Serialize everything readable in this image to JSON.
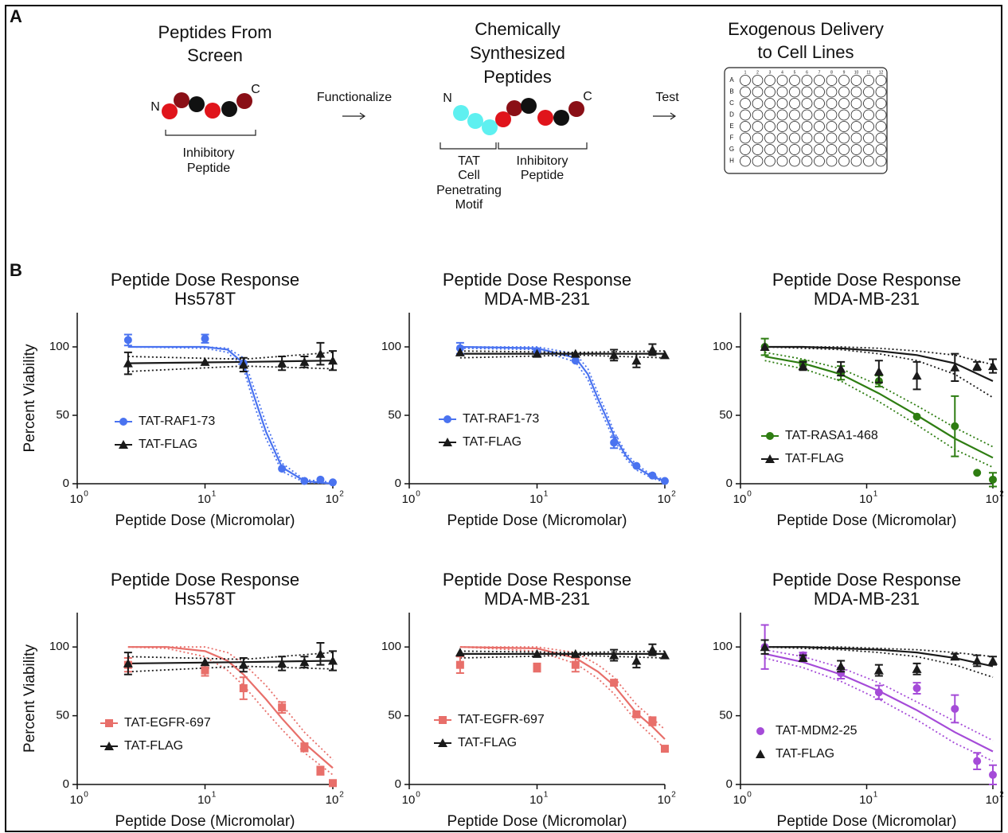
{
  "panel_a": {
    "label": "A",
    "step1": {
      "title": [
        "Peptides From",
        "Screen"
      ],
      "n": "N",
      "c": "C",
      "bracket": [
        "Inhibitory",
        "Peptide"
      ]
    },
    "arrow1": "Functionalize",
    "step2": {
      "title": [
        "Chemically",
        "Synthesized",
        "Peptides"
      ],
      "n": "N",
      "c": "C",
      "tat": [
        "TAT",
        "Cell",
        "Penetrating",
        "Motif"
      ],
      "inhibitory": [
        "Inhibitory",
        "Peptide"
      ]
    },
    "arrow2": "Test",
    "step3": {
      "title": [
        "Exogenous Delivery",
        "to Cell Lines"
      ],
      "rows": [
        "A",
        "B",
        "C",
        "D",
        "E",
        "F",
        "G",
        "H"
      ],
      "columns": [
        "1",
        "2",
        "3",
        "4",
        "5",
        "6",
        "7",
        "8",
        "9",
        "10",
        "11",
        "12"
      ]
    }
  },
  "panel_b": {
    "label": "B"
  },
  "chart_data": [
    {
      "type": "scatter",
      "title": "Peptide Dose Response",
      "subtitle": "Hs578T",
      "xlabel": "Peptide Dose (Micromolar)",
      "ylabel": "Percent Viability",
      "xscale": "log",
      "xlim": [
        1,
        100
      ],
      "xticks": [
        {
          "value": 1,
          "label": "10",
          "exponent": "0"
        },
        {
          "value": 10,
          "label": "10",
          "exponent": "1"
        },
        {
          "value": 100,
          "label": "10",
          "exponent": "2"
        }
      ],
      "ylim": [
        0,
        125
      ],
      "yticks": [
        0,
        50,
        100
      ],
      "legend_line": true,
      "series": [
        {
          "name": "TAT-RAF1-73",
          "color": "#4a73f0",
          "marker": "circle",
          "x": [
            2.5,
            10,
            20,
            40,
            60,
            80,
            100
          ],
          "values": [
            105,
            106,
            88,
            11,
            2,
            3,
            1
          ],
          "errors": [
            4,
            3,
            null,
            null,
            null,
            null,
            null
          ],
          "fit": {
            "x": [
              2.5,
              10,
              15,
              20,
              25,
              30,
              40,
              60,
              100
            ],
            "values": [
              100,
              100,
              98,
              88,
              60,
              38,
              12,
              2,
              0
            ],
            "lower": [
              100,
              99,
              96,
              84,
              54,
              33,
              9,
              1,
              0
            ],
            "upper": [
              100,
              100,
              99,
              92,
              66,
              44,
              15,
              3,
              1
            ]
          }
        },
        {
          "name": "TAT-FLAG",
          "color": "#1a1a1a",
          "marker": "triangle",
          "x": [
            2.5,
            10,
            20,
            40,
            60,
            80,
            100
          ],
          "values": [
            88,
            89,
            87,
            88,
            89,
            95,
            90
          ],
          "errors": [
            8,
            null,
            5,
            5,
            4,
            8,
            7
          ],
          "fit": {
            "x": [
              2.5,
              20,
              100
            ],
            "values": [
              88,
              89,
              90
            ],
            "lower": [
              82,
              86,
              84
            ],
            "upper": [
              93,
              91,
              96
            ]
          }
        }
      ]
    },
    {
      "type": "scatter",
      "title": "Peptide Dose Response",
      "subtitle": "MDA-MB-231",
      "xlabel": "Peptide Dose (Micromolar)",
      "xscale": "log",
      "xlim": [
        1,
        100
      ],
      "xticks": [
        {
          "value": 1,
          "label": "10",
          "exponent": "0"
        },
        {
          "value": 10,
          "label": "10",
          "exponent": "1"
        },
        {
          "value": 100,
          "label": "10",
          "exponent": "2"
        }
      ],
      "ylim": [
        0,
        125
      ],
      "yticks": [
        0,
        50,
        100
      ],
      "legend_line": true,
      "series": [
        {
          "name": "TAT-RAF1-73",
          "color": "#4a73f0",
          "marker": "circle",
          "x": [
            2.5,
            10,
            20,
            40,
            60,
            80,
            100
          ],
          "values": [
            99,
            97,
            90,
            30,
            13,
            6,
            2
          ],
          "errors": [
            4,
            null,
            null,
            4,
            null,
            null,
            null
          ],
          "fit": {
            "x": [
              2.5,
              10,
              20,
              25,
              30,
              35,
              40,
              50,
              60,
              80,
              100
            ],
            "values": [
              100,
              99,
              92,
              80,
              62,
              48,
              35,
              20,
              12,
              5,
              2
            ],
            "lower": [
              99,
              98,
              89,
              76,
              58,
              44,
              32,
              18,
              10,
              4,
              1
            ],
            "upper": [
              100,
              100,
              95,
              84,
              66,
              52,
              38,
              22,
              14,
              6,
              3
            ]
          }
        },
        {
          "name": "TAT-FLAG",
          "color": "#1a1a1a",
          "marker": "triangle",
          "x": [
            2.5,
            10,
            20,
            40,
            60,
            80,
            100
          ],
          "values": [
            96,
            95,
            95,
            94,
            90,
            98,
            94
          ],
          "errors": [
            null,
            null,
            null,
            4,
            5,
            4,
            null
          ],
          "fit": {
            "x": [
              2.5,
              20,
              100
            ],
            "values": [
              95,
              95,
              95
            ],
            "lower": [
              92,
              94,
              92
            ],
            "upper": [
              97,
              96,
              97
            ]
          }
        }
      ]
    },
    {
      "type": "scatter",
      "title": "Peptide Dose Response",
      "subtitle": "MDA-MB-231",
      "xlabel": "Peptide Dose (Micromolar)",
      "xscale": "log",
      "xlim": [
        1,
        100
      ],
      "xticks": [
        {
          "value": 1,
          "label": "10",
          "exponent": "0"
        },
        {
          "value": 10,
          "label": "10",
          "exponent": "1"
        },
        {
          "value": 100,
          "label": "10",
          "exponent": "2"
        }
      ],
      "ylim": [
        0,
        125
      ],
      "yticks": [
        0,
        50,
        100
      ],
      "legend_line": true,
      "series": [
        {
          "name": "TAT-RASA1-468",
          "color": "#2e7d12",
          "marker": "circle",
          "x": [
            1.56,
            3.13,
            6.25,
            12.5,
            25,
            50,
            75,
            100
          ],
          "values": [
            100,
            87,
            81,
            75,
            49,
            42,
            8,
            3
          ],
          "errors": [
            6,
            3,
            5,
            4,
            null,
            22,
            null,
            5
          ],
          "fit": {
            "x": [
              1.56,
              3.13,
              6.25,
              12.5,
              25,
              50,
              100
            ],
            "values": [
              93,
              88,
              80,
              66,
              50,
              33,
              19
            ],
            "lower": [
              90,
              84,
              75,
              60,
              43,
              25,
              12
            ],
            "upper": [
              96,
              91,
              84,
              72,
              57,
              41,
              27
            ]
          }
        },
        {
          "name": "TAT-FLAG",
          "color": "#1a1a1a",
          "marker": "triangle",
          "x": [
            1.56,
            3.13,
            6.25,
            12.5,
            25,
            50,
            75,
            100
          ],
          "values": [
            100,
            86,
            84,
            82,
            79,
            85,
            86,
            86
          ],
          "errors": [
            null,
            3,
            5,
            8,
            10,
            10,
            3,
            5
          ],
          "fit": {
            "x": [
              1.56,
              3.13,
              6.25,
              12.5,
              25,
              50,
              100
            ],
            "values": [
              100,
              100,
              99,
              97,
              94,
              88,
              75
            ],
            "lower": [
              100,
              99,
              98,
              95,
              90,
              80,
              63
            ],
            "upper": [
              100,
              100,
              100,
              99,
              97,
              94,
              87
            ]
          }
        }
      ]
    },
    {
      "type": "scatter",
      "title": "Peptide Dose Response",
      "subtitle": "Hs578T",
      "xlabel": "Peptide Dose (Micromolar)",
      "ylabel": "Percent Viability",
      "xscale": "log",
      "xlim": [
        1,
        100
      ],
      "xticks": [
        {
          "value": 1,
          "label": "10",
          "exponent": "0"
        },
        {
          "value": 10,
          "label": "10",
          "exponent": "1"
        },
        {
          "value": 100,
          "label": "10",
          "exponent": "2"
        }
      ],
      "ylim": [
        0,
        125
      ],
      "yticks": [
        0,
        50,
        100
      ],
      "legend_line": true,
      "series": [
        {
          "name": "TAT-EGFR-697",
          "color": "#e86f6a",
          "marker": "square",
          "x": [
            2.5,
            10,
            20,
            40,
            60,
            80,
            100
          ],
          "values": [
            87,
            83,
            70,
            56,
            27,
            10,
            1
          ],
          "errors": [
            5,
            4,
            8,
            4,
            3,
            3,
            null
          ],
          "fit": {
            "x": [
              2.5,
              5,
              10,
              15,
              20,
              30,
              40,
              60,
              100
            ],
            "values": [
              100,
              100,
              97,
              90,
              80,
              62,
              48,
              30,
              12
            ],
            "lower": [
              100,
              99,
              93,
              83,
              72,
              53,
              40,
              23,
              7
            ],
            "upper": [
              100,
              100,
              100,
              96,
              88,
              72,
              58,
              38,
              18
            ]
          }
        },
        {
          "name": "TAT-FLAG",
          "color": "#1a1a1a",
          "marker": "triangle",
          "x": [
            2.5,
            10,
            20,
            40,
            60,
            80,
            100
          ],
          "values": [
            88,
            89,
            87,
            88,
            89,
            95,
            90
          ],
          "errors": [
            8,
            null,
            5,
            5,
            4,
            8,
            7
          ],
          "fit": {
            "x": [
              2.5,
              20,
              100
            ],
            "values": [
              88,
              89,
              90
            ],
            "lower": [
              82,
              86,
              84
            ],
            "upper": [
              93,
              91,
              96
            ]
          }
        }
      ]
    },
    {
      "type": "scatter",
      "title": "Peptide Dose Response",
      "subtitle": "MDA-MB-231",
      "xlabel": "Peptide Dose (Micromolar)",
      "xscale": "log",
      "xlim": [
        1,
        100
      ],
      "xticks": [
        {
          "value": 1,
          "label": "10",
          "exponent": "0"
        },
        {
          "value": 10,
          "label": "10",
          "exponent": "1"
        },
        {
          "value": 100,
          "label": "10",
          "exponent": "2"
        }
      ],
      "ylim": [
        0,
        125
      ],
      "yticks": [
        0,
        50,
        100
      ],
      "legend_line": true,
      "series": [
        {
          "name": "TAT-EGFR-697",
          "color": "#e86f6a",
          "marker": "square",
          "x": [
            2.5,
            10,
            20,
            40,
            60,
            80,
            100
          ],
          "values": [
            87,
            85,
            87,
            74,
            51,
            46,
            26
          ],
          "errors": [
            6,
            3,
            5,
            null,
            2,
            3,
            null
          ],
          "fit": {
            "x": [
              2.5,
              10,
              20,
              30,
              40,
              60,
              80,
              100
            ],
            "values": [
              100,
              99,
              92,
              82,
              72,
              52,
              42,
              33
            ],
            "lower": [
              100,
              97,
              88,
              77,
              66,
              46,
              35,
              26
            ],
            "upper": [
              100,
              100,
              96,
              87,
              78,
              58,
              48,
              40
            ]
          }
        },
        {
          "name": "TAT-FLAG",
          "color": "#1a1a1a",
          "marker": "triangle",
          "x": [
            2.5,
            10,
            20,
            40,
            60,
            80,
            100
          ],
          "values": [
            96,
            95,
            95,
            94,
            90,
            98,
            94
          ],
          "errors": [
            null,
            null,
            null,
            4,
            5,
            4,
            null
          ],
          "fit": {
            "x": [
              2.5,
              20,
              100
            ],
            "values": [
              95,
              95,
              95
            ],
            "lower": [
              92,
              94,
              92
            ],
            "upper": [
              97,
              96,
              97
            ]
          }
        }
      ]
    },
    {
      "type": "scatter",
      "title": "Peptide Dose Response",
      "subtitle": "MDA-MB-231",
      "xlabel": "Peptide Dose (Micromolar)",
      "xscale": "log",
      "xlim": [
        1,
        100
      ],
      "xticks": [
        {
          "value": 1,
          "label": "10",
          "exponent": "0"
        },
        {
          "value": 10,
          "label": "10",
          "exponent": "1"
        },
        {
          "value": 100,
          "label": "10",
          "exponent": "2"
        }
      ],
      "ylim": [
        0,
        125
      ],
      "yticks": [
        0,
        50,
        100
      ],
      "legend_line": false,
      "series": [
        {
          "name": "TAT-MDM2-25",
          "color": "#a54bd8",
          "marker": "circle",
          "x": [
            1.56,
            3.13,
            6.25,
            12.5,
            25,
            50,
            75,
            100
          ],
          "values": [
            100,
            94,
            81,
            67,
            70,
            55,
            17,
            7
          ],
          "errors": [
            16,
            2,
            4,
            5,
            4,
            10,
            6,
            7
          ],
          "fit": {
            "x": [
              1.56,
              3.13,
              6.25,
              12.5,
              25,
              50,
              100
            ],
            "values": [
              95,
              89,
              80,
              68,
              54,
              38,
              24
            ],
            "lower": [
              92,
              85,
              75,
              62,
              47,
              30,
              17
            ],
            "upper": [
              98,
              93,
              85,
              74,
              60,
              46,
              32
            ]
          }
        },
        {
          "name": "TAT-FLAG",
          "color": "#1a1a1a",
          "marker": "triangle",
          "x": [
            1.56,
            3.13,
            6.25,
            12.5,
            25,
            50,
            75,
            100
          ],
          "values": [
            100,
            92,
            86,
            83,
            84,
            93,
            90,
            90
          ],
          "errors": [
            5,
            2,
            4,
            4,
            4,
            2,
            4,
            3
          ],
          "fit": {
            "x": [
              1.56,
              3.13,
              6.25,
              12.5,
              25,
              50,
              100
            ],
            "values": [
              100,
              100,
              99,
              98,
              96,
              92,
              86
            ],
            "lower": [
              100,
              99,
              98,
              96,
              93,
              87,
              78
            ],
            "upper": [
              100,
              100,
              100,
              99,
              98,
              96,
              93
            ]
          }
        }
      ]
    }
  ]
}
